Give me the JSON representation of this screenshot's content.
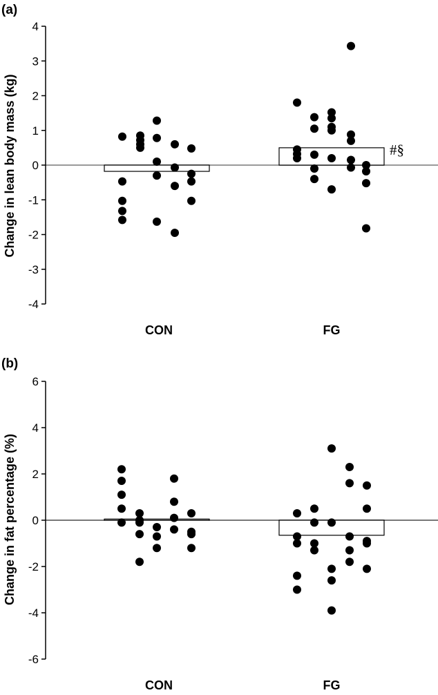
{
  "colors": {
    "axis": "#000000",
    "zero_line": "#999999",
    "points": "#000000",
    "bar_fill": "#ffffff",
    "bar_stroke": "#000000"
  },
  "chart_data": [
    {
      "type": "scatter",
      "panel_label": "(a)",
      "ylabel": "Change in lean body mass (kg)",
      "xlabel": "",
      "categories": [
        "CON",
        "FG"
      ],
      "ylim": [
        -4,
        4
      ],
      "yticks": [
        4,
        3,
        2,
        1,
        0,
        -1,
        -2,
        -3,
        -4
      ],
      "zero_line": true,
      "bar_means": [
        -0.18,
        0.5
      ],
      "points": [
        {
          "group": "CON",
          "y": 0.82
        },
        {
          "group": "CON",
          "y": -0.47
        },
        {
          "group": "CON",
          "y": -1.03
        },
        {
          "group": "CON",
          "y": -1.32
        },
        {
          "group": "CON",
          "y": -1.58
        },
        {
          "group": "CON",
          "y": 0.6
        },
        {
          "group": "CON",
          "y": 0.72
        },
        {
          "group": "CON",
          "y": 0.85
        },
        {
          "group": "CON",
          "y": 0.5
        },
        {
          "group": "CON",
          "y": 1.28
        },
        {
          "group": "CON",
          "y": 0.78
        },
        {
          "group": "CON",
          "y": 0.1
        },
        {
          "group": "CON",
          "y": -0.3
        },
        {
          "group": "CON",
          "y": -1.63
        },
        {
          "group": "CON",
          "y": 0.6
        },
        {
          "group": "CON",
          "y": -0.07
        },
        {
          "group": "CON",
          "y": -0.6
        },
        {
          "group": "CON",
          "y": -1.95
        },
        {
          "group": "CON",
          "y": 0.48
        },
        {
          "group": "CON",
          "y": -0.25
        },
        {
          "group": "CON",
          "y": -0.47
        },
        {
          "group": "CON",
          "y": -1.03
        },
        {
          "group": "FG",
          "y": 1.8
        },
        {
          "group": "FG",
          "y": 0.45
        },
        {
          "group": "FG",
          "y": 0.32
        },
        {
          "group": "FG",
          "y": 0.2
        },
        {
          "group": "FG",
          "y": 1.38
        },
        {
          "group": "FG",
          "y": 1.05
        },
        {
          "group": "FG",
          "y": 0.3
        },
        {
          "group": "FG",
          "y": -0.1
        },
        {
          "group": "FG",
          "y": -0.4
        },
        {
          "group": "FG",
          "y": 1.52
        },
        {
          "group": "FG",
          "y": 1.35
        },
        {
          "group": "FG",
          "y": 1.1
        },
        {
          "group": "FG",
          "y": 0.2
        },
        {
          "group": "FG",
          "y": -0.7
        },
        {
          "group": "FG",
          "y": 1.0
        },
        {
          "group": "FG",
          "y": 0.88
        },
        {
          "group": "FG",
          "y": 0.7
        },
        {
          "group": "FG",
          "y": 0.15
        },
        {
          "group": "FG",
          "y": -0.07
        },
        {
          "group": "FG",
          "y": 3.43
        },
        {
          "group": "FG",
          "y": 0.0
        },
        {
          "group": "FG",
          "y": -0.18
        },
        {
          "group": "FG",
          "y": -0.52
        },
        {
          "group": "FG",
          "y": -1.82
        }
      ],
      "annotation": "#§"
    },
    {
      "type": "scatter",
      "panel_label": "(b)",
      "ylabel": "Change in fat percentage (%)",
      "xlabel": "",
      "categories": [
        "CON",
        "FG"
      ],
      "ylim": [
        -6,
        6
      ],
      "yticks": [
        6,
        4,
        2,
        0,
        -2,
        -4,
        -6
      ],
      "zero_line": true,
      "bar_means": [
        0.05,
        -0.65
      ],
      "points": [
        {
          "group": "CON",
          "y": 2.2
        },
        {
          "group": "CON",
          "y": 1.7
        },
        {
          "group": "CON",
          "y": 1.1
        },
        {
          "group": "CON",
          "y": 0.5
        },
        {
          "group": "CON",
          "y": -0.1
        },
        {
          "group": "CON",
          "y": 0.3
        },
        {
          "group": "CON",
          "y": 0.0
        },
        {
          "group": "CON",
          "y": -0.6
        },
        {
          "group": "CON",
          "y": -1.8
        },
        {
          "group": "CON",
          "y": -0.1
        },
        {
          "group": "CON",
          "y": -0.3
        },
        {
          "group": "CON",
          "y": -0.7
        },
        {
          "group": "CON",
          "y": -1.2
        },
        {
          "group": "CON",
          "y": 1.8
        },
        {
          "group": "CON",
          "y": 0.8
        },
        {
          "group": "CON",
          "y": 0.1
        },
        {
          "group": "CON",
          "y": -0.4
        },
        {
          "group": "CON",
          "y": 0.3
        },
        {
          "group": "CON",
          "y": -0.5
        },
        {
          "group": "CON",
          "y": -0.6
        },
        {
          "group": "CON",
          "y": -1.2
        },
        {
          "group": "FG",
          "y": 0.3
        },
        {
          "group": "FG",
          "y": -0.7
        },
        {
          "group": "FG",
          "y": -1.0
        },
        {
          "group": "FG",
          "y": -2.4
        },
        {
          "group": "FG",
          "y": -3.0
        },
        {
          "group": "FG",
          "y": 0.5
        },
        {
          "group": "FG",
          "y": -0.1
        },
        {
          "group": "FG",
          "y": -1.0
        },
        {
          "group": "FG",
          "y": -1.3
        },
        {
          "group": "FG",
          "y": -0.1
        },
        {
          "group": "FG",
          "y": -2.1
        },
        {
          "group": "FG",
          "y": -2.6
        },
        {
          "group": "FG",
          "y": -3.9
        },
        {
          "group": "FG",
          "y": 3.1
        },
        {
          "group": "FG",
          "y": 2.3
        },
        {
          "group": "FG",
          "y": 1.6
        },
        {
          "group": "FG",
          "y": -0.7
        },
        {
          "group": "FG",
          "y": -1.3
        },
        {
          "group": "FG",
          "y": -1.8
        },
        {
          "group": "FG",
          "y": 1.5
        },
        {
          "group": "FG",
          "y": 0.5
        },
        {
          "group": "FG",
          "y": -0.9
        },
        {
          "group": "FG",
          "y": -1.0
        },
        {
          "group": "FG",
          "y": -2.1
        }
      ],
      "annotation": ""
    }
  ]
}
